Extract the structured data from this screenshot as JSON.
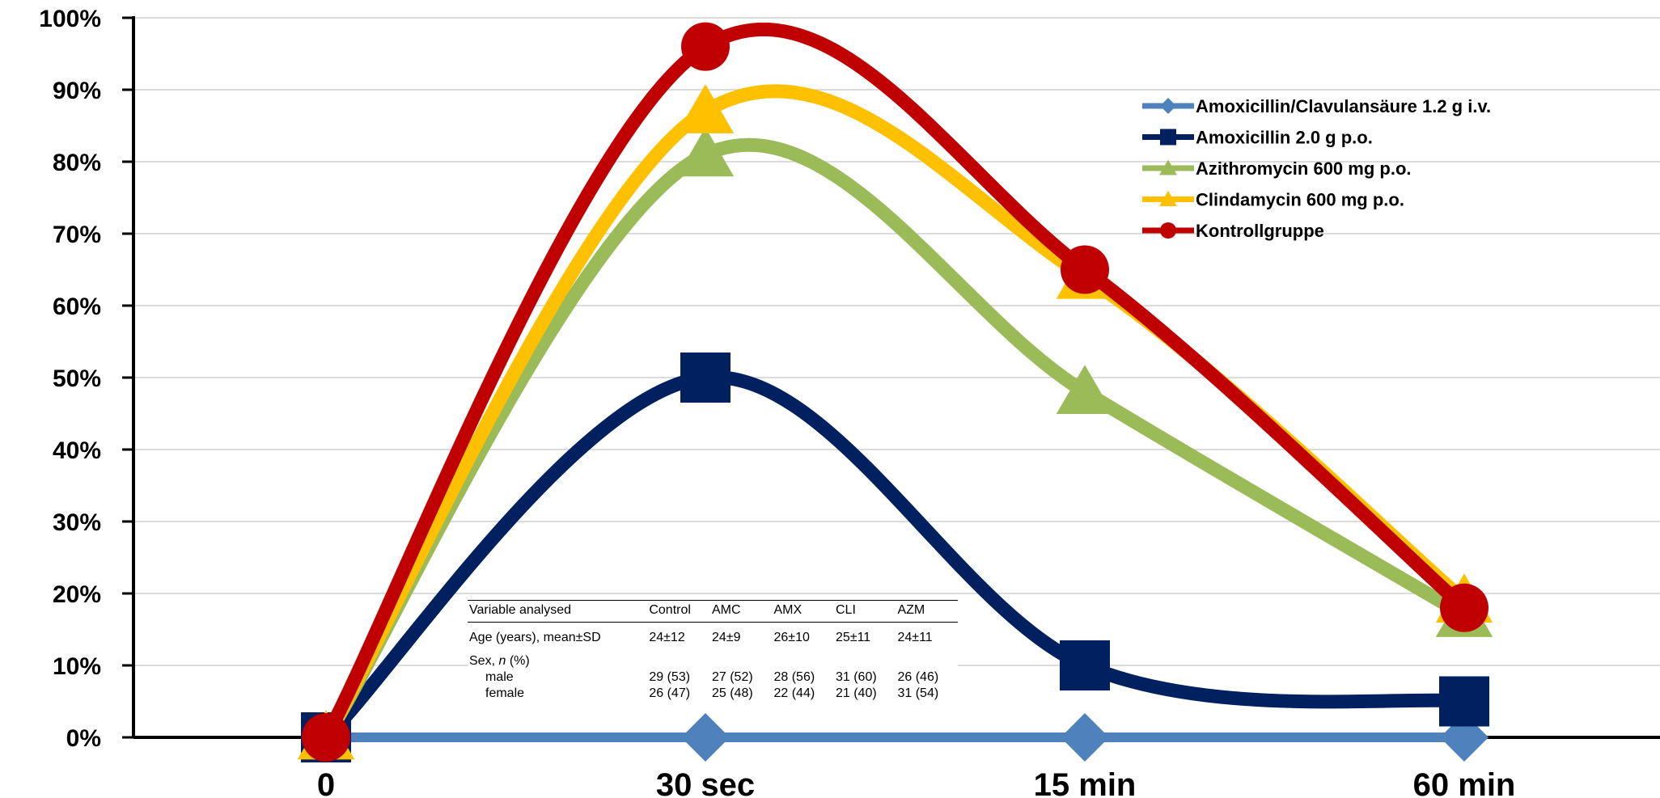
{
  "chart_data": {
    "type": "line",
    "categories": [
      "0",
      "30 sec",
      "15 min",
      "60 min"
    ],
    "y_ticks": [
      "0%",
      "10%",
      "20%",
      "30%",
      "40%",
      "50%",
      "60%",
      "70%",
      "80%",
      "90%",
      "100%"
    ],
    "ylim": [
      0,
      100
    ],
    "grid": true,
    "legend_position": "top-right",
    "series": [
      {
        "name": "Amoxicillin/Clavulansäure 1.2 g i.v.",
        "values": [
          0,
          0,
          0,
          0
        ],
        "color": "#4F81BD",
        "marker": "diamond"
      },
      {
        "name": "Amoxicillin 2.0 g p.o.",
        "values": [
          0,
          50,
          10,
          5
        ],
        "color": "#002060",
        "marker": "square"
      },
      {
        "name": "Azithromycin 600 mg p.o.",
        "values": [
          0,
          81,
          48,
          17
        ],
        "color": "#9BBB59",
        "marker": "triangle"
      },
      {
        "name": "Clindamycin 600 mg p.o.",
        "values": [
          0,
          87,
          64,
          19
        ],
        "color": "#FFC000",
        "marker": "triangle"
      },
      {
        "name": "Kontrollgruppe",
        "values": [
          0,
          96,
          65,
          18
        ],
        "color": "#C00000",
        "marker": "circle"
      }
    ]
  },
  "inset_table": {
    "headers": [
      "Variable analysed",
      "Control",
      "AMC",
      "AMX",
      "CLI",
      "AZM"
    ],
    "rows": [
      {
        "label": "Age (years), mean±SD",
        "values": [
          "24±12",
          "24±9",
          "26±10",
          "25±11",
          "24±11"
        ]
      },
      {
        "label": "Sex, n (%)",
        "values": [
          "",
          "",
          "",
          "",
          ""
        ]
      },
      {
        "label": "male",
        "values": [
          "29 (53)",
          "27 (52)",
          "28 (56)",
          "31 (60)",
          "26 (46)"
        ]
      },
      {
        "label": "female",
        "values": [
          "26 (47)",
          "25 (48)",
          "22 (44)",
          "21 (40)",
          "31 (54)"
        ]
      }
    ]
  }
}
